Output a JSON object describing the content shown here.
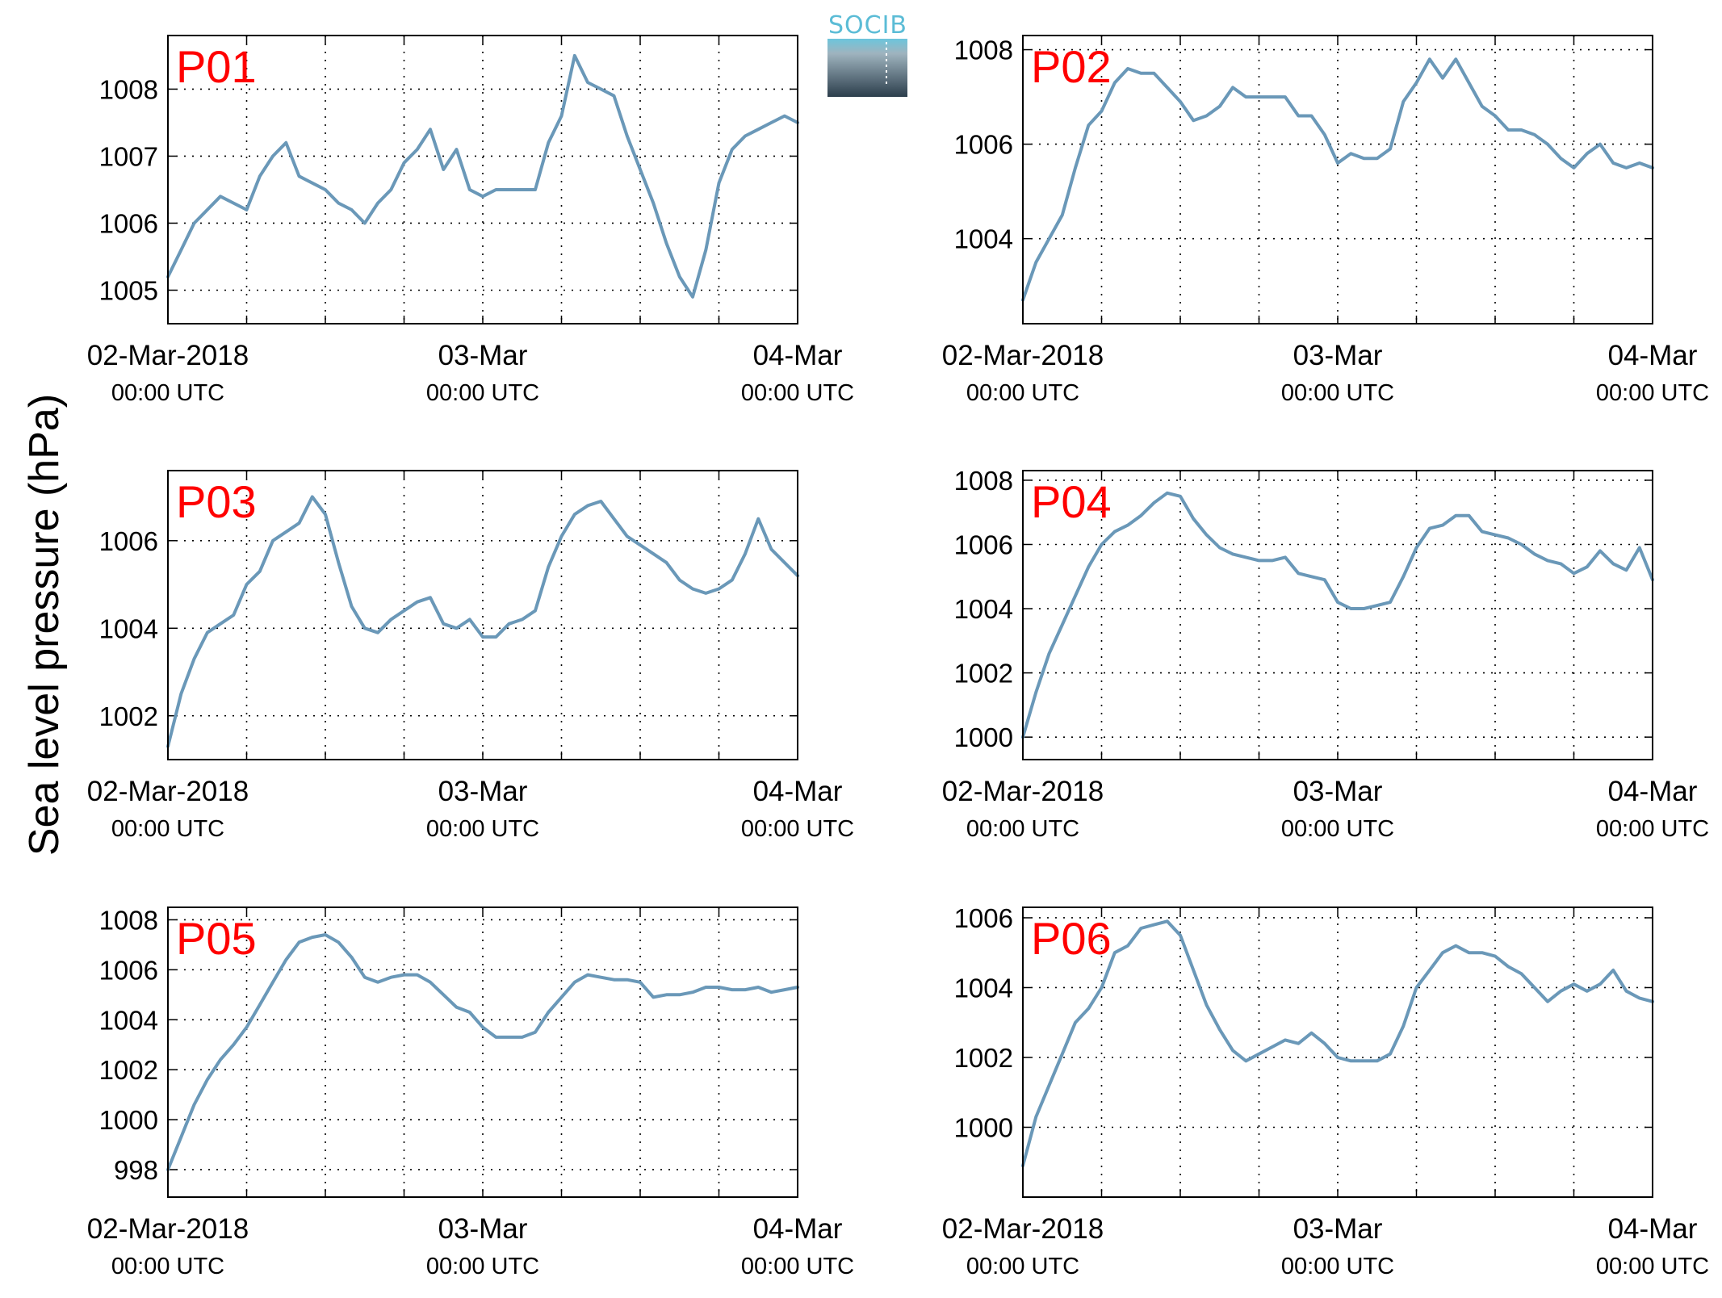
{
  "figure": {
    "ylabel": "Sea level pressure (hPa)",
    "logo": {
      "text": "SOCIB",
      "text_color": "#5bbcd6",
      "top_color": "#6cc5dc",
      "bottom_color": "#2c3e4c"
    },
    "line_color": "#6a98b8",
    "label_color": "#ff0000",
    "x_ticks": [
      {
        "date": "02-Mar-2018",
        "time": "00:00 UTC",
        "t": 0
      },
      {
        "date": "03-Mar",
        "time": "00:00 UTC",
        "t": 24
      },
      {
        "date": "04-Mar",
        "time": "00:00 UTC",
        "t": 48
      }
    ]
  },
  "chart_data": [
    {
      "type": "line",
      "panel_label": "P01",
      "x_unit": "hours since 02-Mar-2018 00:00 UTC",
      "xlim": [
        0,
        48
      ],
      "ylim": [
        1004.5,
        1008.8
      ],
      "yticks": [
        1005,
        1006,
        1007,
        1008
      ],
      "grid": true,
      "x": [
        0,
        1,
        2,
        3,
        4,
        5,
        6,
        7,
        8,
        9,
        10,
        11,
        12,
        13,
        14,
        15,
        16,
        17,
        18,
        19,
        20,
        21,
        22,
        23,
        24,
        25,
        26,
        27,
        28,
        29,
        30,
        31,
        32,
        33,
        34,
        35,
        36,
        37,
        38,
        39,
        40,
        41,
        42,
        43,
        44,
        45,
        46,
        47,
        48
      ],
      "values": [
        1005.2,
        1005.6,
        1006.0,
        1006.2,
        1006.4,
        1006.3,
        1006.2,
        1006.7,
        1007.0,
        1007.2,
        1006.7,
        1006.6,
        1006.5,
        1006.3,
        1006.2,
        1006.0,
        1006.3,
        1006.5,
        1006.9,
        1007.1,
        1007.4,
        1006.8,
        1007.1,
        1006.5,
        1006.4,
        1006.5,
        1006.5,
        1006.5,
        1006.5,
        1007.2,
        1007.6,
        1008.5,
        1008.1,
        1008.0,
        1007.9,
        1007.3,
        1006.8,
        1006.3,
        1005.7,
        1005.2,
        1004.9,
        1005.6,
        1006.6,
        1007.1,
        1007.3,
        1007.4,
        1007.5,
        1007.6,
        1007.5
      ]
    },
    {
      "type": "line",
      "panel_label": "P02",
      "x_unit": "hours since 02-Mar-2018 00:00 UTC",
      "xlim": [
        0,
        48
      ],
      "ylim": [
        1002.2,
        1008.3
      ],
      "yticks": [
        1004,
        1006,
        1008
      ],
      "grid": true,
      "x": [
        0,
        1,
        2,
        3,
        4,
        5,
        6,
        7,
        8,
        9,
        10,
        11,
        12,
        13,
        14,
        15,
        16,
        17,
        18,
        19,
        20,
        21,
        22,
        23,
        24,
        25,
        26,
        27,
        28,
        29,
        30,
        31,
        32,
        33,
        34,
        35,
        36,
        37,
        38,
        39,
        40,
        41,
        42,
        43,
        44,
        45,
        46,
        47,
        48
      ],
      "values": [
        1002.7,
        1003.5,
        1004.0,
        1004.5,
        1005.5,
        1006.4,
        1006.7,
        1007.3,
        1007.6,
        1007.5,
        1007.5,
        1007.2,
        1006.9,
        1006.5,
        1006.6,
        1006.8,
        1007.2,
        1007.0,
        1007.0,
        1007.0,
        1007.0,
        1006.6,
        1006.6,
        1006.2,
        1005.6,
        1005.8,
        1005.7,
        1005.7,
        1005.9,
        1006.9,
        1007.3,
        1007.8,
        1007.4,
        1007.8,
        1007.3,
        1006.8,
        1006.6,
        1006.3,
        1006.3,
        1006.2,
        1006.0,
        1005.7,
        1005.5,
        1005.8,
        1006.0,
        1005.6,
        1005.5,
        1005.6,
        1005.5
      ]
    },
    {
      "type": "line",
      "panel_label": "P03",
      "x_unit": "hours since 02-Mar-2018 00:00 UTC",
      "xlim": [
        0,
        48
      ],
      "ylim": [
        1001.0,
        1007.6
      ],
      "yticks": [
        1002,
        1004,
        1006
      ],
      "grid": true,
      "x": [
        0,
        1,
        2,
        3,
        4,
        5,
        6,
        7,
        8,
        9,
        10,
        11,
        12,
        13,
        14,
        15,
        16,
        17,
        18,
        19,
        20,
        21,
        22,
        23,
        24,
        25,
        26,
        27,
        28,
        29,
        30,
        31,
        32,
        33,
        34,
        35,
        36,
        37,
        38,
        39,
        40,
        41,
        42,
        43,
        44,
        45,
        46,
        47,
        48
      ],
      "values": [
        1001.3,
        1002.5,
        1003.3,
        1003.9,
        1004.1,
        1004.3,
        1005.0,
        1005.3,
        1006.0,
        1006.2,
        1006.4,
        1007.0,
        1006.6,
        1005.5,
        1004.5,
        1004.0,
        1003.9,
        1004.2,
        1004.4,
        1004.6,
        1004.7,
        1004.1,
        1004.0,
        1004.2,
        1003.8,
        1003.8,
        1004.1,
        1004.2,
        1004.4,
        1005.4,
        1006.1,
        1006.6,
        1006.8,
        1006.9,
        1006.5,
        1006.1,
        1005.9,
        1005.7,
        1005.5,
        1005.1,
        1004.9,
        1004.8,
        1004.9,
        1005.1,
        1005.7,
        1006.5,
        1005.8,
        1005.5,
        1005.2
      ]
    },
    {
      "type": "line",
      "panel_label": "P04",
      "x_unit": "hours since 02-Mar-2018 00:00 UTC",
      "xlim": [
        0,
        48
      ],
      "ylim": [
        999.3,
        1008.3
      ],
      "yticks": [
        1000,
        1002,
        1004,
        1006,
        1008
      ],
      "grid": true,
      "x": [
        0,
        1,
        2,
        3,
        4,
        5,
        6,
        7,
        8,
        9,
        10,
        11,
        12,
        13,
        14,
        15,
        16,
        17,
        18,
        19,
        20,
        21,
        22,
        23,
        24,
        25,
        26,
        27,
        28,
        29,
        30,
        31,
        32,
        33,
        34,
        35,
        36,
        37,
        38,
        39,
        40,
        41,
        42,
        43,
        44,
        45,
        46,
        47,
        48
      ],
      "values": [
        1000.0,
        1001.4,
        1002.6,
        1003.5,
        1004.4,
        1005.3,
        1006.0,
        1006.4,
        1006.6,
        1006.9,
        1007.3,
        1007.6,
        1007.5,
        1006.8,
        1006.3,
        1005.9,
        1005.7,
        1005.6,
        1005.5,
        1005.5,
        1005.6,
        1005.1,
        1005.0,
        1004.9,
        1004.2,
        1004.0,
        1004.0,
        1004.1,
        1004.2,
        1005.0,
        1005.9,
        1006.5,
        1006.6,
        1006.9,
        1006.9,
        1006.4,
        1006.3,
        1006.2,
        1006.0,
        1005.7,
        1005.5,
        1005.4,
        1005.1,
        1005.3,
        1005.8,
        1005.4,
        1005.2,
        1005.9,
        1004.9
      ]
    },
    {
      "type": "line",
      "panel_label": "P05",
      "x_unit": "hours since 02-Mar-2018 00:00 UTC",
      "xlim": [
        0,
        48
      ],
      "ylim": [
        996.9,
        1008.5
      ],
      "yticks": [
        998,
        1000,
        1002,
        1004,
        1006,
        1008
      ],
      "grid": true,
      "x": [
        0,
        1,
        2,
        3,
        4,
        5,
        6,
        7,
        8,
        9,
        10,
        11,
        12,
        13,
        14,
        15,
        16,
        17,
        18,
        19,
        20,
        21,
        22,
        23,
        24,
        25,
        26,
        27,
        28,
        29,
        30,
        31,
        32,
        33,
        34,
        35,
        36,
        37,
        38,
        39,
        40,
        41,
        42,
        43,
        44,
        45,
        46,
        47,
        48
      ],
      "values": [
        998.0,
        999.3,
        1000.6,
        1001.6,
        1002.4,
        1003.0,
        1003.7,
        1004.6,
        1005.5,
        1006.4,
        1007.1,
        1007.3,
        1007.4,
        1007.1,
        1006.5,
        1005.7,
        1005.5,
        1005.7,
        1005.8,
        1005.8,
        1005.5,
        1005.0,
        1004.5,
        1004.3,
        1003.7,
        1003.3,
        1003.3,
        1003.3,
        1003.5,
        1004.3,
        1004.9,
        1005.5,
        1005.8,
        1005.7,
        1005.6,
        1005.6,
        1005.5,
        1004.9,
        1005.0,
        1005.0,
        1005.1,
        1005.3,
        1005.3,
        1005.2,
        1005.2,
        1005.3,
        1005.1,
        1005.2,
        1005.3
      ]
    },
    {
      "type": "line",
      "panel_label": "P06",
      "x_unit": "hours since 02-Mar-2018 00:00 UTC",
      "xlim": [
        0,
        48
      ],
      "ylim": [
        998.0,
        1006.3
      ],
      "yticks": [
        1000,
        1002,
        1004,
        1006
      ],
      "grid": true,
      "x": [
        0,
        1,
        2,
        3,
        4,
        5,
        6,
        7,
        8,
        9,
        10,
        11,
        12,
        13,
        14,
        15,
        16,
        17,
        18,
        19,
        20,
        21,
        22,
        23,
        24,
        25,
        26,
        27,
        28,
        29,
        30,
        31,
        32,
        33,
        34,
        35,
        36,
        37,
        38,
        39,
        40,
        41,
        42,
        43,
        44,
        45,
        46,
        47,
        48
      ],
      "values": [
        998.9,
        1000.3,
        1001.2,
        1002.1,
        1003.0,
        1003.4,
        1004.0,
        1005.0,
        1005.2,
        1005.7,
        1005.8,
        1005.9,
        1005.5,
        1004.5,
        1003.5,
        1002.8,
        1002.2,
        1001.9,
        1002.1,
        1002.3,
        1002.5,
        1002.4,
        1002.7,
        1002.4,
        1002.0,
        1001.9,
        1001.9,
        1001.9,
        1002.1,
        1002.9,
        1004.0,
        1004.5,
        1005.0,
        1005.2,
        1005.0,
        1005.0,
        1004.9,
        1004.6,
        1004.4,
        1004.0,
        1003.6,
        1003.9,
        1004.1,
        1003.9,
        1004.1,
        1004.5,
        1003.9,
        1003.7,
        1003.6
      ]
    }
  ]
}
